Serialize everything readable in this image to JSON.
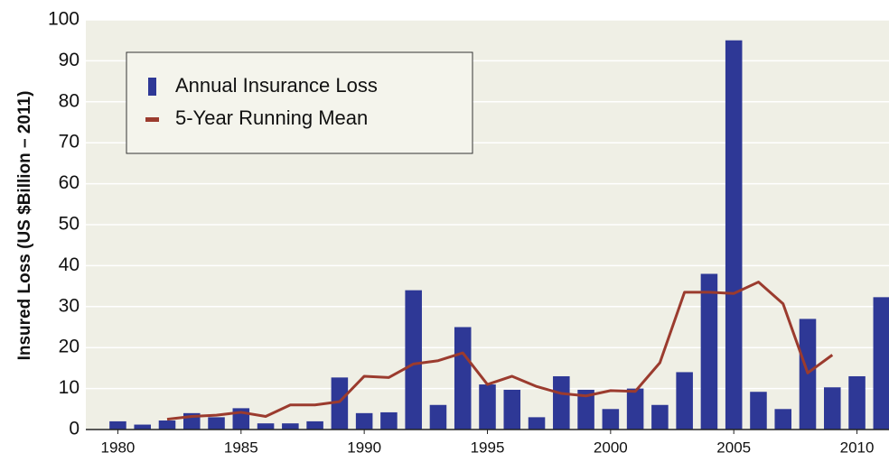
{
  "chart_data": {
    "type": "bar-line",
    "y_label": "Insured Loss (US $Billion – 2011)",
    "x": [
      1980,
      1981,
      1982,
      1983,
      1984,
      1985,
      1986,
      1987,
      1988,
      1989,
      1990,
      1991,
      1992,
      1993,
      1994,
      1995,
      1996,
      1997,
      1998,
      1999,
      2000,
      2001,
      2002,
      2003,
      2004,
      2005,
      2006,
      2007,
      2008,
      2009,
      2010,
      2011
    ],
    "series": [
      {
        "name": "Annual Insurance Loss",
        "type": "bar",
        "color": "#2e3896",
        "values": [
          2,
          1.2,
          2.2,
          4,
          3,
          5.2,
          1.5,
          1.5,
          2,
          12.7,
          4,
          4.2,
          34,
          6,
          25,
          11,
          9.7,
          3,
          13,
          9.7,
          5,
          10,
          6,
          14,
          38,
          95,
          9.2,
          5,
          27,
          10.3,
          13,
          32.3
        ]
      },
      {
        "name": "5-Year Running Mean",
        "type": "line",
        "color": "#9b3b2e",
        "values": [
          null,
          null,
          2.5,
          3.2,
          3.5,
          4.2,
          3.2,
          6,
          6,
          6.8,
          13,
          12.7,
          16,
          16.8,
          18.7,
          11,
          13,
          10.5,
          8.8,
          8.2,
          9.5,
          9.3,
          16.3,
          33.5,
          33.5,
          33.2,
          36,
          30.7,
          13.8,
          18.2,
          null,
          null
        ]
      }
    ],
    "xlim": [
      1978.7,
      2011.3
    ],
    "xticks": [
      1980,
      1985,
      1990,
      1995,
      2000,
      2005,
      2010
    ],
    "ylim": [
      0,
      100
    ],
    "yticks": [
      0,
      10,
      20,
      30,
      40,
      50,
      60,
      70,
      80,
      90,
      100
    ],
    "grid": true
  }
}
